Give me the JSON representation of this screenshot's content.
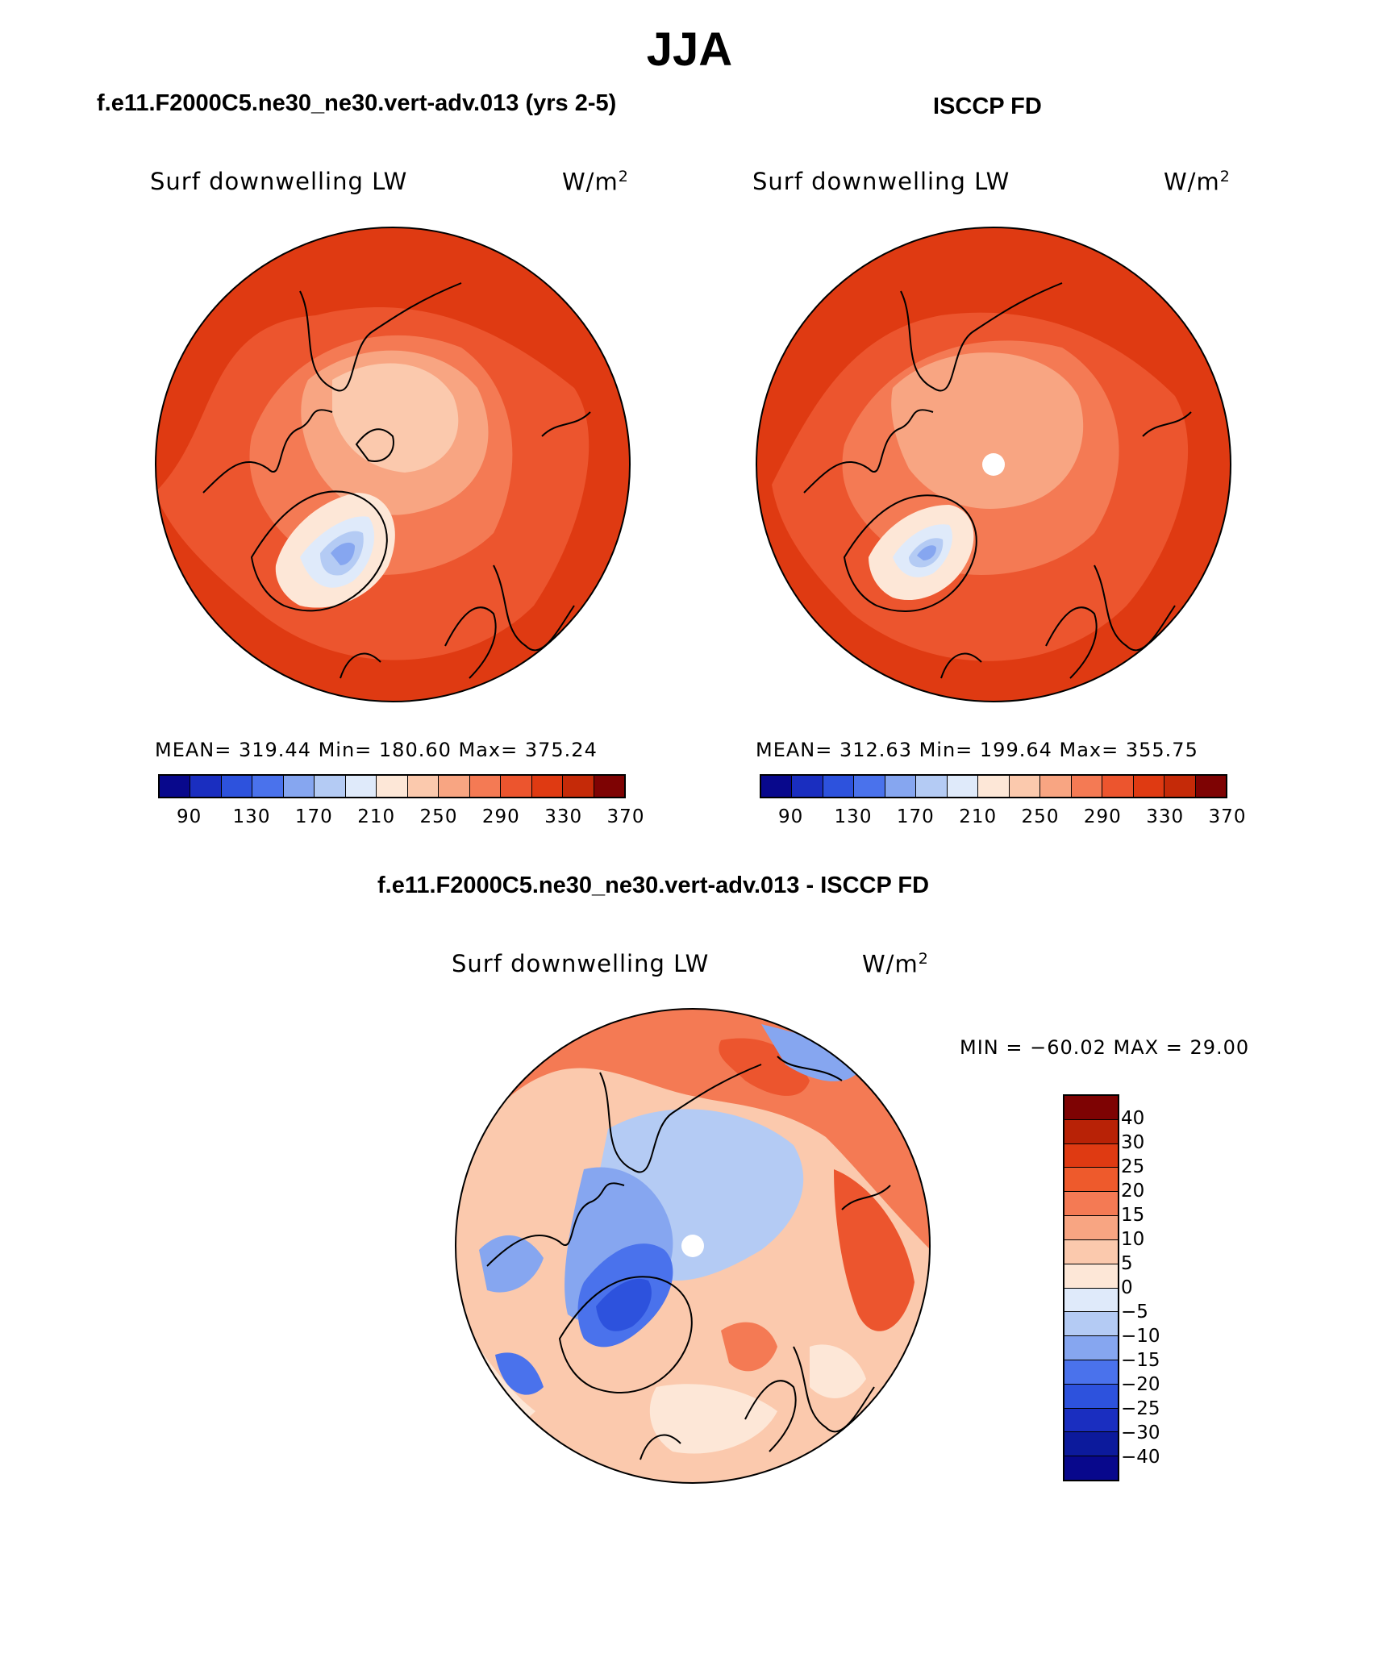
{
  "title": "JJA",
  "panels": [
    {
      "case_title": "f.e11.F2000C5.ne30_ne30.vert-adv.013 (yrs 2-5)",
      "variable": "Surf downwelling LW",
      "units": "W/m",
      "units_exponent": "2",
      "stats": "MEAN= 319.44   Min= 180.60   Max= 375.24"
    },
    {
      "case_title": "ISCCP FD",
      "variable": "Surf downwelling LW",
      "units": "W/m",
      "units_exponent": "2",
      "stats": "MEAN= 312.63   Min= 199.64   Max= 355.75"
    }
  ],
  "abs_colorbar": {
    "colors": [
      "#08088c",
      "#1a2ec0",
      "#2d52dd",
      "#4a72ec",
      "#86a6f0",
      "#b4cbf4",
      "#dfeafa",
      "#fde7d7",
      "#fbc9ad",
      "#f8a582",
      "#f47a54",
      "#ec552e",
      "#df3a12",
      "#c52a08",
      "#7e0303"
    ],
    "ticks": [
      "90",
      "130",
      "170",
      "210",
      "250",
      "290",
      "330",
      "370"
    ]
  },
  "diff_panel": {
    "case_title": "f.e11.F2000C5.ne30_ne30.vert-adv.013 - ISCCP FD",
    "variable": "Surf downwelling LW",
    "units": "W/m",
    "units_exponent": "2",
    "minmax": "MIN = −60.02 MAX =   29.00"
  },
  "diff_colorbar": {
    "colors": [
      "#7e0303",
      "#b82206",
      "#df3a12",
      "#ee5a2c",
      "#f47a54",
      "#f8a582",
      "#fbc9ad",
      "#fde7d7",
      "#dfeafa",
      "#b4cbf4",
      "#86a6f0",
      "#4a72ec",
      "#2d52dd",
      "#1a2ec0",
      "#0c1a9c",
      "#08088c"
    ],
    "ticks": [
      "40",
      "30",
      "25",
      "20",
      "15",
      "10",
      "5",
      "0",
      "−5",
      "−10",
      "−15",
      "−20",
      "−25",
      "−30",
      "−40"
    ]
  }
}
